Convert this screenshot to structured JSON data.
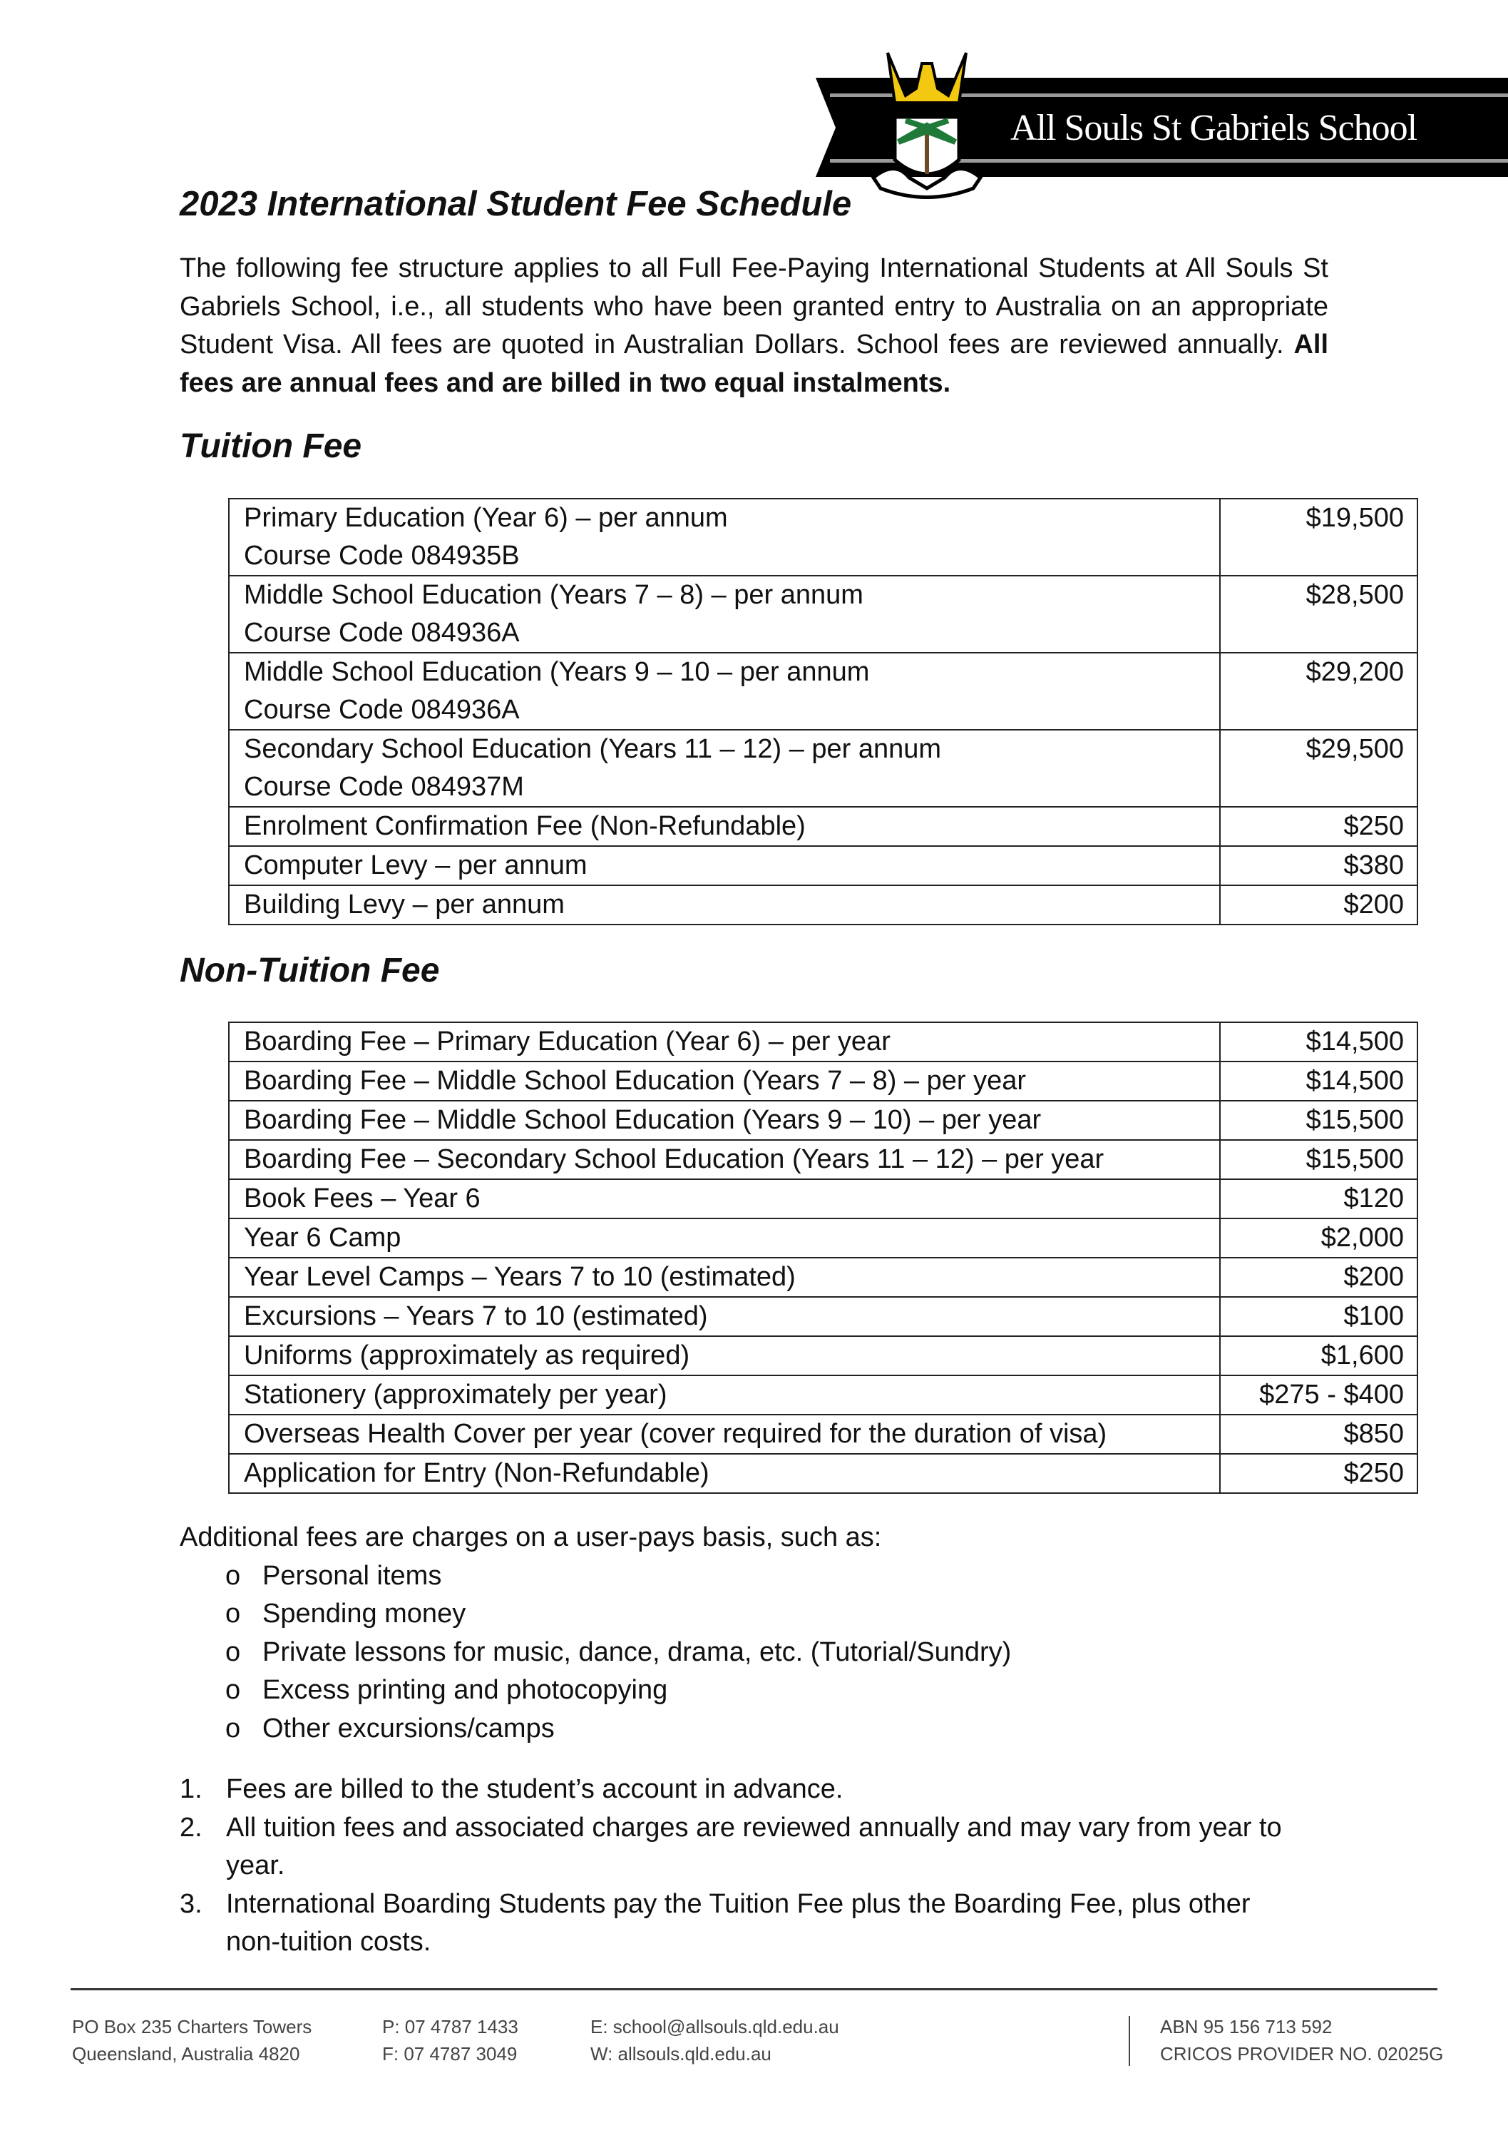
{
  "header": {
    "school_name": "All Souls St Gabriels School",
    "colors": {
      "banner": "#000000",
      "stripe": "#9a9a9a",
      "eagle": "#f2c811",
      "palm": "#1f7a3a"
    }
  },
  "title": "2023 International Student Fee Schedule",
  "intro": {
    "text": "The following fee structure applies to all Full Fee-Paying International Students at All Souls St Gabriels School, i.e., all students who have been granted entry to Australia on an appropriate Student Visa. All fees are quoted in Australian Dollars. School fees are reviewed annually.",
    "bold": "All fees are annual fees and are billed in two equal instalments."
  },
  "tuition": {
    "heading": "Tuition Fee",
    "rows": [
      {
        "item": "Primary Education (Year 6) – per annum",
        "code": "Course Code 084935B",
        "amount": "$19,500"
      },
      {
        "item": "Middle School Education (Years 7 – 8) – per annum",
        "code": "Course Code 084936A",
        "amount": "$28,500"
      },
      {
        "item": "Middle School Education (Years 9 – 10 – per annum",
        "code": "Course Code 084936A",
        "amount": "$29,200"
      },
      {
        "item": "Secondary School Education (Years 11 – 12) – per annum",
        "code": "Course Code 084937M",
        "amount": "$29,500"
      },
      {
        "item": "Enrolment Confirmation Fee (Non-Refundable)",
        "amount": "$250"
      },
      {
        "item": "Computer Levy – per annum",
        "amount": "$380"
      },
      {
        "item": "Building Levy – per annum",
        "amount": "$200"
      }
    ]
  },
  "non_tuition": {
    "heading": "Non-Tuition Fee",
    "rows": [
      {
        "item": "Boarding Fee – Primary Education (Year 6) – per year",
        "amount": "$14,500"
      },
      {
        "item": "Boarding Fee – Middle School Education (Years 7 – 8) – per year",
        "amount": "$14,500"
      },
      {
        "item": "Boarding Fee – Middle School Education (Years 9 – 10) – per year",
        "amount": "$15,500"
      },
      {
        "item": "Boarding Fee – Secondary School Education (Years 11 – 12) – per year",
        "amount": "$15,500"
      },
      {
        "item": "Book Fees – Year 6",
        "amount": "$120"
      },
      {
        "item": "Year 6 Camp",
        "amount": "$2,000"
      },
      {
        "item": "Year Level Camps – Years 7 to 10 (estimated)",
        "amount": "$200"
      },
      {
        "item": "Excursions – Years 7 to 10 (estimated)",
        "amount": "$100"
      },
      {
        "item": "Uniforms (approximately as required)",
        "amount": "$1,600"
      },
      {
        "item": "Stationery (approximately per year)",
        "amount": "$275 - $400"
      },
      {
        "item": "Overseas Health Cover per year (cover required for the duration of visa)",
        "amount": "$850"
      },
      {
        "item": "Application for Entry (Non-Refundable)",
        "amount": "$250"
      }
    ]
  },
  "additional": {
    "intro": "Additional fees are charges on a user-pays basis, such as:",
    "bullet": "o",
    "items": [
      "Personal items",
      "Spending money",
      "Private lessons for music, dance, drama, etc. (Tutorial/Sundry)",
      "Excess printing and photocopying",
      "Other excursions/camps"
    ]
  },
  "notes": [
    {
      "n": "1.",
      "text": "Fees are billed to the student’s account in advance."
    },
    {
      "n": "2.",
      "text": "All tuition fees and associated charges are reviewed annually and may vary from year to year."
    },
    {
      "n": "3.",
      "text": "International Boarding Students pay the Tuition Fee plus the Boarding Fee, plus other non-tuition costs."
    }
  ],
  "footer": {
    "address1": "PO Box 235 Charters Towers",
    "address2": "Queensland, Australia 4820",
    "phone": "P:  07 4787 1433",
    "fax": "F:  07 4787 3049",
    "email": "E:  school@allsouls.qld.edu.au",
    "web": "W: allsouls.qld.edu.au",
    "abn": "ABN 95 156 713 592",
    "cricos": "CRICOS PROVIDER NO. 02025G"
  }
}
